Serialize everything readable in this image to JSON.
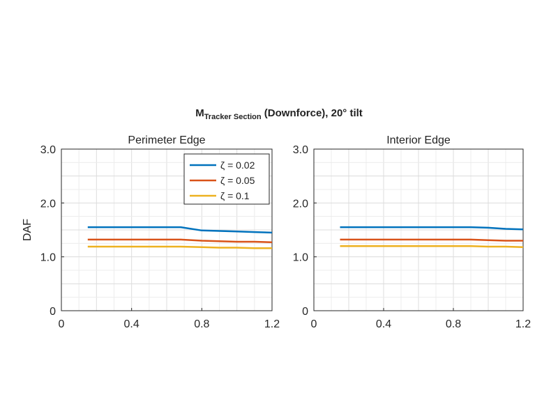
{
  "figure": {
    "title_main": "M",
    "title_subscript": "Tracker Section",
    "title_rest": " (Downforce), 20° tilt"
  },
  "chart_data": [
    {
      "type": "line",
      "title": "Perimeter Edge",
      "xlabel": "",
      "ylabel": "DAF",
      "xlim": [
        0,
        1.2
      ],
      "ylim": [
        0,
        3
      ],
      "xticks": [
        "0",
        "0.4",
        "0.8",
        "1.2"
      ],
      "yticks": [
        "0",
        "1.0",
        "2.0",
        "3.0"
      ],
      "grid": true,
      "legend": "top-right",
      "series": [
        {
          "name": "ζ = 0.02",
          "color": "#0072BD",
          "x": [
            0.15,
            0.68,
            0.8,
            0.9,
            1.0,
            1.1,
            1.2
          ],
          "y": [
            1.55,
            1.55,
            1.49,
            1.48,
            1.47,
            1.46,
            1.45
          ]
        },
        {
          "name": "ζ = 0.05",
          "color": "#D95319",
          "x": [
            0.15,
            0.68,
            0.8,
            0.9,
            1.0,
            1.1,
            1.2
          ],
          "y": [
            1.32,
            1.32,
            1.3,
            1.29,
            1.28,
            1.28,
            1.27
          ]
        },
        {
          "name": "ζ = 0.1",
          "color": "#EDB120",
          "x": [
            0.15,
            0.68,
            0.8,
            0.9,
            1.0,
            1.1,
            1.2
          ],
          "y": [
            1.19,
            1.19,
            1.18,
            1.17,
            1.17,
            1.16,
            1.16
          ]
        }
      ]
    },
    {
      "type": "line",
      "title": "Interior Edge",
      "xlabel": "",
      "ylabel": "",
      "xlim": [
        0,
        1.2
      ],
      "ylim": [
        0,
        3
      ],
      "xticks": [
        "0",
        "0.4",
        "0.8",
        "1.2"
      ],
      "yticks": [
        "0",
        "1.0",
        "2.0",
        "3.0"
      ],
      "grid": true,
      "legend": "none",
      "series": [
        {
          "name": "ζ = 0.02",
          "color": "#0072BD",
          "x": [
            0.15,
            0.9,
            1.0,
            1.1,
            1.2
          ],
          "y": [
            1.55,
            1.55,
            1.54,
            1.52,
            1.51
          ]
        },
        {
          "name": "ζ = 0.05",
          "color": "#D95319",
          "x": [
            0.15,
            0.9,
            1.0,
            1.1,
            1.2
          ],
          "y": [
            1.32,
            1.32,
            1.31,
            1.3,
            1.3
          ]
        },
        {
          "name": "ζ = 0.1",
          "color": "#EDB120",
          "x": [
            0.15,
            0.9,
            1.0,
            1.1,
            1.2
          ],
          "y": [
            1.2,
            1.2,
            1.19,
            1.19,
            1.18
          ]
        }
      ]
    }
  ]
}
